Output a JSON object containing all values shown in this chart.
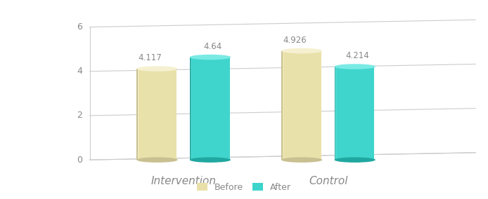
{
  "groups": [
    "Intervention",
    "Control"
  ],
  "before_values": [
    4.117,
    4.926
  ],
  "after_values": [
    4.64,
    4.214
  ],
  "before_color_mid": "#e8e0a8",
  "before_color_light": "#f5f0d0",
  "before_color_dark": "#c8c090",
  "after_color_mid": "#3dd4cc",
  "after_color_light": "#7aeae4",
  "after_color_dark": "#20a8a0",
  "ylim": [
    0,
    6
  ],
  "yticks": [
    0,
    2,
    4,
    6
  ],
  "label_before": "Before",
  "label_after": "After",
  "value_fontsize": 8.5,
  "axis_fontsize": 9,
  "legend_fontsize": 9,
  "background_color": "#ffffff",
  "grid_color": "#cccccc",
  "text_color": "#888888"
}
